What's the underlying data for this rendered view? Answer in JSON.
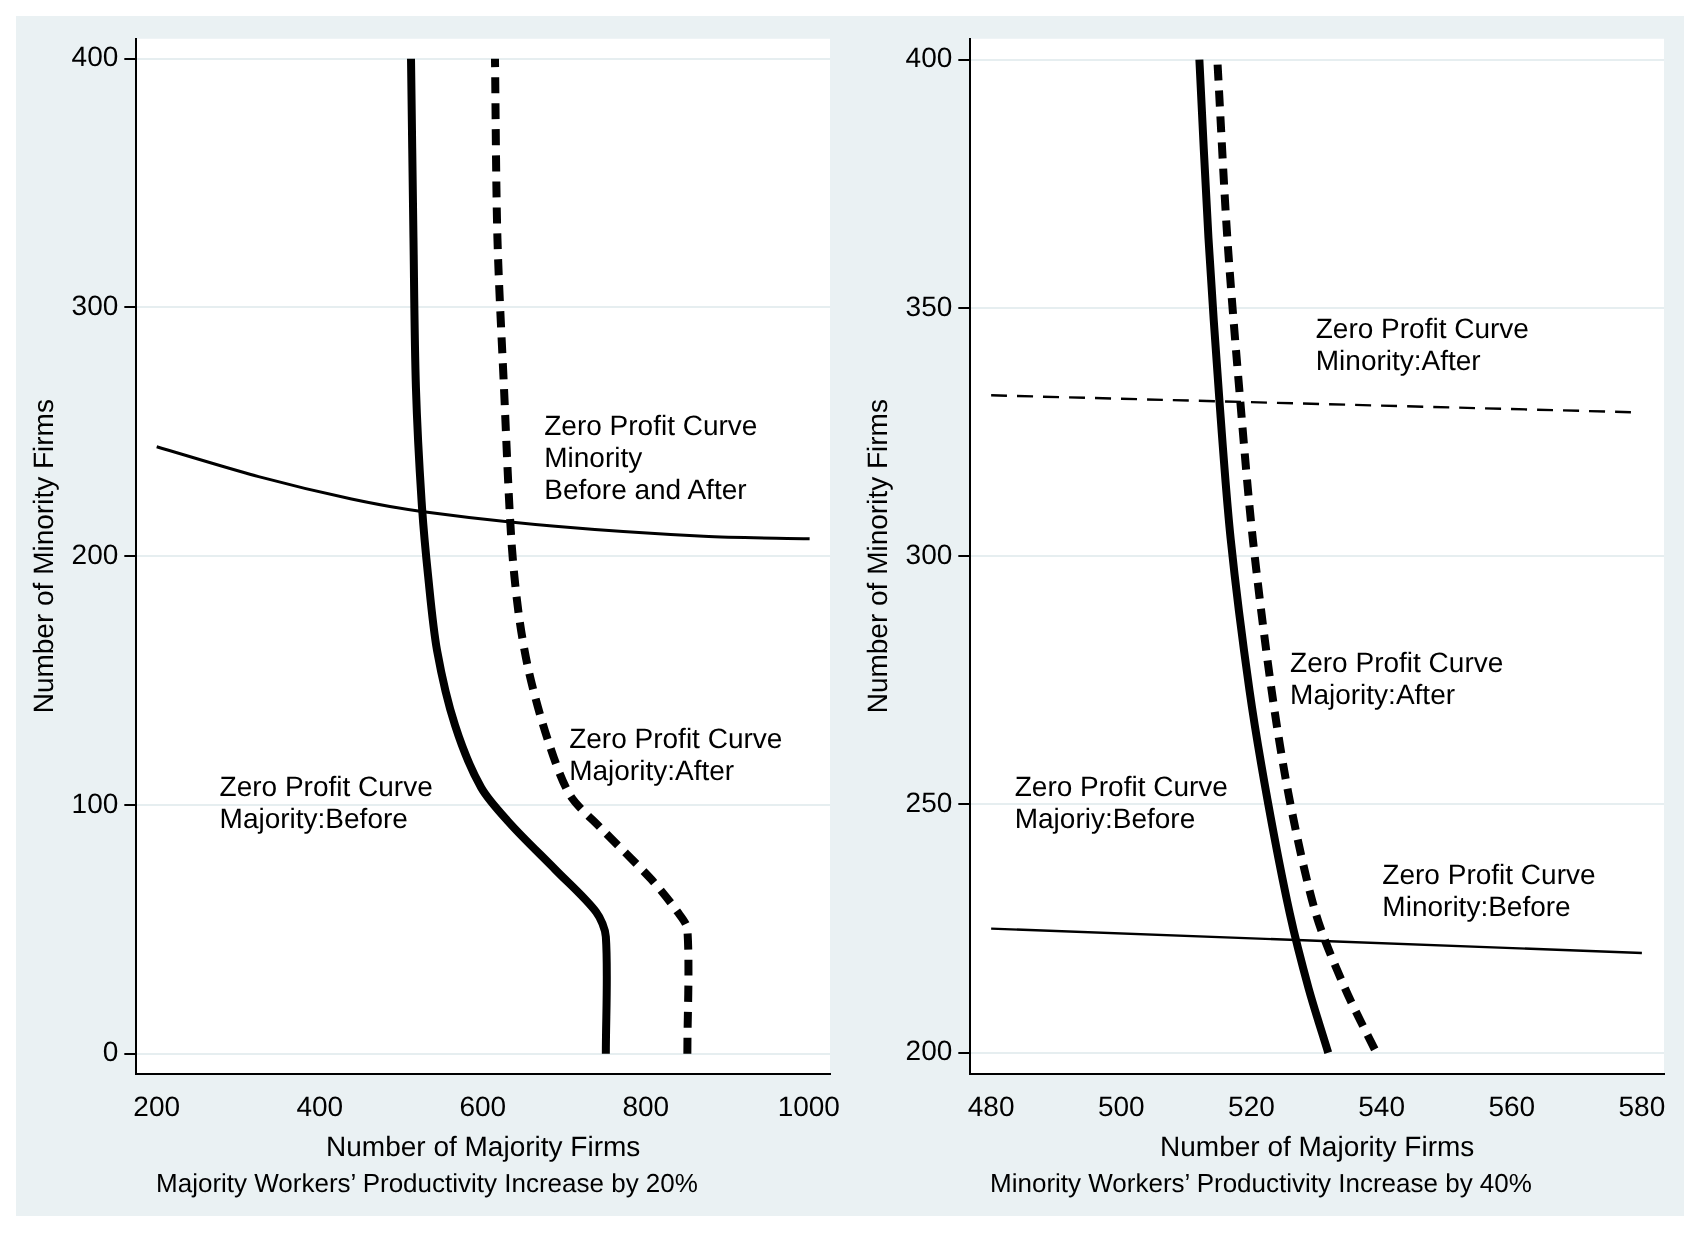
{
  "chart_data": [
    {
      "type": "line",
      "title": "Majority Workers’ Productivity Increase by 20%",
      "xlabel": "Number of Majority Firms",
      "ylabel": "Number of Minority Firms",
      "xlim": [
        175,
        1026
      ],
      "xticks": [
        200,
        400,
        600,
        800,
        1000
      ],
      "ylim": [
        -8,
        408
      ],
      "yticks": [
        0,
        100,
        200,
        300,
        400
      ],
      "grid": "y",
      "legend": false,
      "marker": "none",
      "series": [
        {
          "color": "#000000",
          "line_style": "solid",
          "x": [
            751,
            751,
            739,
            689,
            635,
            598,
            566,
            544,
            533,
            525,
            518,
            515,
            512
          ],
          "values": [
            0,
            47,
            57,
            74,
            92,
            107,
            132,
            162,
            192,
            222,
            268,
            328,
            400
          ]
        },
        {
          "color": "#000000",
          "line_style": "dashed",
          "x": [
            851,
            851,
            839,
            807,
            744,
            707,
            680,
            657,
            644,
            635,
            626,
            618,
            615
          ],
          "values": [
            0,
            50,
            57,
            70,
            91,
            104,
            126,
            153,
            177,
            207,
            268,
            328,
            400
          ]
        },
        {
          "color": "#000000",
          "line_style": "solid",
          "x": [
            200,
            325,
            439,
            525,
            689,
            871,
            1001
          ],
          "values": [
            244,
            232,
            223,
            218,
            212,
            208,
            207
          ]
        }
      ],
      "annotations": [
        "Zero Profit Curve\nMinority\nBefore and After",
        "Zero Profit Curve\nMajority:After",
        "Zero Profit Curve\nMajority:Before"
      ]
    },
    {
      "type": "line",
      "title": "Minority Workers’ Productivity Increase by 40%",
      "xlabel": "Number of Majority Firms",
      "ylabel": "Number of Minority Firms",
      "xlim": [
        476.8,
        583.4
      ],
      "xticks": [
        480,
        500,
        520,
        540,
        560,
        580
      ],
      "ylim": [
        195.8,
        404.2
      ],
      "yticks": [
        200,
        250,
        300,
        350,
        400
      ],
      "grid": "y",
      "legend": false,
      "marker": "none",
      "series": [
        {
          "color": "#000000",
          "line_style": "solid",
          "x": [
            512,
            513.4,
            515.1,
            516.8,
            519.7,
            522.5,
            525.9,
            528.8,
            531.8
          ],
          "values": [
            400,
            364,
            331,
            303.6,
            273,
            250.7,
            228,
            212.9,
            200
          ]
        },
        {
          "color": "#000000",
          "line_style": "dashed",
          "x": [
            514.8,
            516.3,
            518.3,
            520.2,
            523.1,
            525.9,
            529.9,
            534.4,
            539.2
          ],
          "values": [
            399,
            364,
            331,
            303.6,
            273,
            250.7,
            228,
            212.9,
            200
          ]
        },
        {
          "color": "#000000",
          "line_style": "dashed",
          "x": [
            480,
            578.4
          ],
          "values": [
            332.4,
            329
          ]
        },
        {
          "color": "#000000",
          "line_style": "solid",
          "x": [
            480,
            580
          ],
          "values": [
            225,
            220.1
          ]
        }
      ],
      "annotations": [
        "Zero Profit Curve\nMinority:After",
        "Zero Profit Curve\nMajority:After",
        "Zero Profit Curve\nMajoriy:Before",
        "Zero Profit Curve\nMinority:Before"
      ]
    }
  ]
}
